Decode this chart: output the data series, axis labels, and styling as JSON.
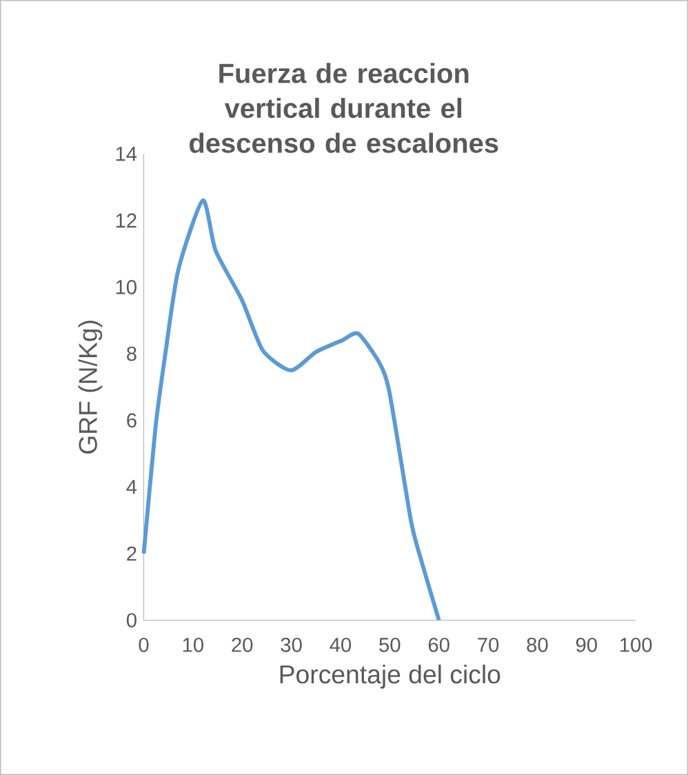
{
  "chart_data": {
    "type": "line",
    "title": "Fuerza de reaccion vertical durante el descenso de escalones",
    "xlabel": "Porcentaje del ciclo",
    "ylabel": "GRF (N/Kg)",
    "x": [
      0,
      2.4,
      4.3,
      7,
      12,
      14.6,
      20,
      24.2,
      29.9,
      35,
      40.3,
      43.6,
      48,
      50,
      54.3,
      56.4,
      60
    ],
    "values": [
      2,
      5.8,
      7.9,
      10.5,
      12.6,
      11.1,
      9.6,
      8.1,
      7.5,
      8.05,
      8.4,
      8.6,
      7.7,
      6.8,
      3,
      1.8,
      0
    ],
    "color": "#5b9bd5",
    "xlim": [
      0,
      100
    ],
    "xticks": [
      0,
      10,
      20,
      30,
      40,
      50,
      60,
      70,
      80,
      90,
      100
    ],
    "ylim": [
      0,
      14
    ],
    "yticks": [
      0,
      2,
      4,
      6,
      8,
      10,
      12,
      14
    ],
    "marker": "none",
    "line_style": "solid"
  }
}
